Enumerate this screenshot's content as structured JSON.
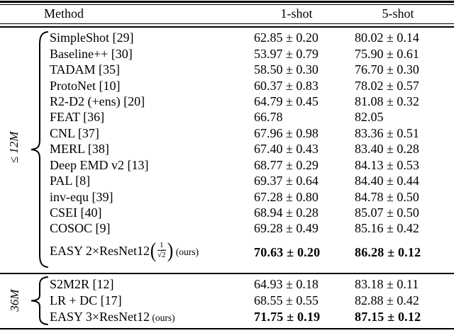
{
  "colors": {
    "text": "#000000",
    "background": "#ffffff"
  },
  "table": {
    "headers": {
      "method": "Method",
      "one_shot": "1-shot",
      "five_shot": "5-shot"
    },
    "sections": [
      {
        "group_label": "≤ 12M",
        "rows": [
          {
            "method": "SimpleShot [29]",
            "one_shot": "62.85 ± 0.20",
            "five_shot": "80.02 ± 0.14",
            "bold": false
          },
          {
            "method": "Baseline++ [30]",
            "one_shot": "53.97 ± 0.79",
            "five_shot": "75.90 ± 0.61",
            "bold": false
          },
          {
            "method": "TADAM [35]",
            "one_shot": "58.50 ± 0.30",
            "five_shot": "76.70 ± 0.30",
            "bold": false
          },
          {
            "method": "ProtoNet [10]",
            "one_shot": "60.37 ± 0.83",
            "five_shot": "78.02 ± 0.57",
            "bold": false
          },
          {
            "method": "R2-D2 (+ens) [20]",
            "one_shot": "64.79 ± 0.45",
            "five_shot": "81.08 ± 0.32",
            "bold": false
          },
          {
            "method": "FEAT [36]",
            "one_shot": "66.78",
            "five_shot": "82.05",
            "bold": false
          },
          {
            "method": "CNL [37]",
            "one_shot": "67.96 ± 0.98",
            "five_shot": "83.36 ± 0.51",
            "bold": false
          },
          {
            "method": "MERL [38]",
            "one_shot": "67.40 ± 0.43",
            "five_shot": "83.40 ± 0.28",
            "bold": false
          },
          {
            "method": "Deep EMD v2 [13]",
            "one_shot": "68.77 ± 0.29",
            "five_shot": "84.13 ± 0.53",
            "bold": false
          },
          {
            "method": "PAL [8]",
            "one_shot": "69.37 ± 0.64",
            "five_shot": "84.40 ± 0.44",
            "bold": false
          },
          {
            "method": "inv-equ [39]",
            "one_shot": "67.28 ± 0.80",
            "five_shot": "84.78 ± 0.50",
            "bold": false
          },
          {
            "method": "CSEI [40]",
            "one_shot": "68.94 ± 0.28",
            "five_shot": "85.07 ± 0.50",
            "bold": false
          },
          {
            "method": "COSOC [9]",
            "one_shot": "69.28 ± 0.49",
            "five_shot": "85.16 ± 0.42",
            "bold": false
          },
          {
            "method": "EASY 2×ResNet12",
            "frac": {
              "open": "(",
              "num": "1",
              "den": "√2",
              "close": ")"
            },
            "suffix": "(ours)",
            "one_shot": "70.63 ± 0.20",
            "five_shot": "86.28 ± 0.12",
            "bold": true,
            "tall": true
          }
        ]
      },
      {
        "group_label": "36M",
        "rows": [
          {
            "method": "S2M2R [12]",
            "one_shot": "64.93 ± 0.18",
            "five_shot": "83.18 ± 0.11",
            "bold": false
          },
          {
            "method": "LR + DC [17]",
            "one_shot": "68.55 ± 0.55",
            "five_shot": "82.88 ± 0.42",
            "bold": false
          },
          {
            "method": "EASY 3×ResNet12",
            "suffix": "(ours)",
            "one_shot": "71.75 ± 0.19",
            "five_shot": "87.15 ± 0.12",
            "bold": true
          }
        ]
      }
    ]
  }
}
